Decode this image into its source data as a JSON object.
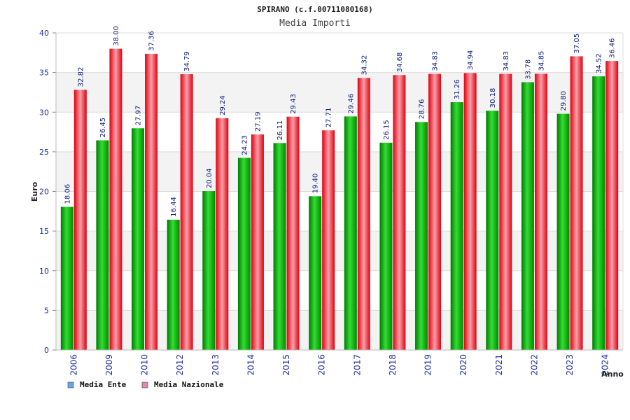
{
  "chart_data": {
    "type": "bar",
    "title": "SPIRANO (c.f.00711080168)",
    "subtitle": "Media Importi",
    "xlabel": "Anno",
    "ylabel": "Euro",
    "ylim": [
      0,
      40
    ],
    "yticks": [
      0,
      5,
      10,
      15,
      20,
      25,
      30,
      35,
      40
    ],
    "grid": true,
    "legend_position": "bottom-left",
    "categories": [
      "2006",
      "2009",
      "2010",
      "2012",
      "2013",
      "2014",
      "2015",
      "2016",
      "2017",
      "2018",
      "2019",
      "2020",
      "2021",
      "2022",
      "2023",
      "2024"
    ],
    "series": [
      {
        "name": "Media Ente",
        "color": "#11bb11",
        "legend_color": "#6aa5e6",
        "values": [
          18.06,
          26.45,
          27.97,
          16.44,
          20.04,
          24.23,
          26.11,
          19.4,
          29.46,
          26.15,
          28.76,
          31.26,
          30.18,
          33.78,
          29.8,
          34.52
        ],
        "labels": [
          "18.06",
          "26.45",
          "27.97",
          "16.44",
          "20.04",
          "24.23",
          "26.11",
          "19.40",
          "29.46",
          "26.15",
          "28.76",
          "31.26",
          "30.18",
          "33.78",
          "29.80",
          "34.52"
        ]
      },
      {
        "name": "Media Nazionale",
        "color": "#ee2233",
        "legend_color": "#e08ab0",
        "values": [
          32.82,
          38.0,
          37.36,
          34.79,
          29.24,
          27.19,
          29.43,
          27.71,
          34.32,
          34.68,
          34.83,
          34.94,
          34.83,
          34.85,
          37.05,
          36.46
        ],
        "labels": [
          "32.82",
          "38.00",
          "37.36",
          "34.79",
          "29.24",
          "27.19",
          "29.43",
          "27.71",
          "34.32",
          "34.68",
          "34.83",
          "34.94",
          "34.83",
          "34.85",
          "37.05",
          "36.46"
        ]
      }
    ]
  }
}
